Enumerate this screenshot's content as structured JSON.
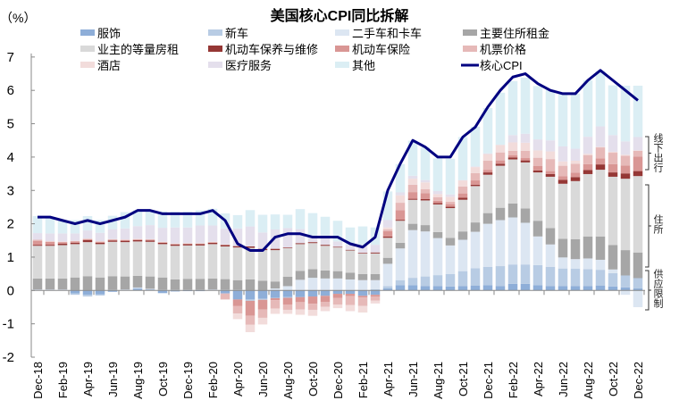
{
  "chart_data": {
    "type": "bar",
    "subtype": "stacked bar with line overlay",
    "title": "美国核心CPI同比拆解",
    "ylabel": "（%）",
    "xlabel": "",
    "ylim": [
      -2,
      7
    ],
    "yticks": [
      -2,
      -1,
      0,
      1,
      2,
      3,
      4,
      5,
      6,
      7
    ],
    "grid": false,
    "legend_position": "top",
    "categories": [
      "Dec-18",
      "Jan-19",
      "Feb-19",
      "Mar-19",
      "Apr-19",
      "May-19",
      "Jun-19",
      "Jul-19",
      "Aug-19",
      "Sep-19",
      "Oct-19",
      "Nov-19",
      "Dec-19",
      "Jan-20",
      "Feb-20",
      "Mar-20",
      "Apr-20",
      "May-20",
      "Jun-20",
      "Jul-20",
      "Aug-20",
      "Sep-20",
      "Oct-20",
      "Nov-20",
      "Dec-20",
      "Jan-21",
      "Feb-21",
      "Mar-21",
      "Apr-21",
      "May-21",
      "Jun-21",
      "Jul-21",
      "Aug-21",
      "Sep-21",
      "Oct-21",
      "Nov-21",
      "Dec-21",
      "Jan-22",
      "Feb-22",
      "Mar-22",
      "Apr-22",
      "May-22",
      "Jun-22",
      "Jul-22",
      "Aug-22",
      "Sep-22",
      "Oct-22",
      "Nov-22",
      "Dec-22"
    ],
    "xtick_labels": [
      "Dec-18",
      "Feb-19",
      "Apr-19",
      "Jun-19",
      "Aug-19",
      "Oct-19",
      "Dec-19",
      "Feb-20",
      "Apr-20",
      "Jun-20",
      "Aug-20",
      "Oct-20",
      "Dec-20",
      "Feb-21",
      "Apr-21",
      "Jun-21",
      "Aug-21",
      "Oct-21",
      "Dec-21",
      "Feb-22",
      "Apr-22",
      "Jun-22",
      "Aug-22",
      "Oct-22",
      "Dec-22"
    ],
    "series": [
      {
        "name": "服饰",
        "color": "#8eaed8",
        "values": [
          0.01,
          0.01,
          0.01,
          -0.09,
          -0.13,
          -0.12,
          -0.04,
          0.01,
          0.05,
          0.02,
          -0.08,
          -0.03,
          -0.02,
          -0.02,
          0.01,
          -0.09,
          -0.27,
          -0.27,
          -0.25,
          -0.22,
          -0.2,
          -0.2,
          -0.18,
          -0.16,
          -0.1,
          -0.1,
          -0.16,
          -0.13,
          0.06,
          0.16,
          0.16,
          0.13,
          0.13,
          0.12,
          0.13,
          0.15,
          0.16,
          0.13,
          0.2,
          0.2,
          0.16,
          0.13,
          0.13,
          0.13,
          0.13,
          0.15,
          0.12,
          0.09,
          0.06
        ]
      },
      {
        "name": "新车",
        "color": "#b8cce4",
        "values": [
          0.01,
          0.01,
          0.01,
          -0.04,
          -0.05,
          -0.03,
          0.01,
          0.01,
          0.03,
          0.02,
          0.01,
          0.01,
          0.01,
          0.01,
          0.01,
          0.01,
          0.01,
          -0.04,
          -0.03,
          -0.01,
          -0.02,
          0.01,
          0.01,
          0.01,
          0.01,
          0.01,
          0.01,
          0.04,
          0.07,
          0.15,
          0.22,
          0.29,
          0.33,
          0.37,
          0.45,
          0.52,
          0.55,
          0.6,
          0.58,
          0.58,
          0.6,
          0.58,
          0.53,
          0.52,
          0.51,
          0.47,
          0.4,
          0.36,
          0.31
        ]
      },
      {
        "name": "二手车和卡车",
        "color": "#dce6f2",
        "values": [
          0.01,
          0.01,
          0.01,
          0.01,
          0.01,
          0.01,
          0.01,
          0.01,
          0.01,
          0.01,
          0.01,
          0.01,
          0.01,
          0.01,
          0.01,
          0.01,
          0.01,
          0.01,
          0.01,
          0.06,
          0.13,
          0.31,
          0.37,
          0.35,
          0.35,
          0.32,
          0.3,
          0.27,
          0.67,
          0.95,
          1.43,
          1.35,
          1.11,
          0.86,
          0.94,
          1.09,
          1.29,
          1.38,
          1.41,
          1.25,
          0.86,
          0.67,
          0.33,
          0.29,
          0.32,
          0.3,
          0.11,
          -0.13,
          -0.5
        ]
      },
      {
        "name": "主要住所租金",
        "color": "#a6a6a6",
        "values": [
          0.33,
          0.33,
          0.33,
          0.38,
          0.42,
          0.38,
          0.41,
          0.39,
          0.35,
          0.37,
          0.37,
          0.31,
          0.33,
          0.33,
          0.33,
          0.32,
          0.29,
          0.32,
          0.28,
          0.21,
          0.28,
          0.27,
          0.26,
          0.24,
          0.22,
          0.2,
          0.18,
          0.18,
          0.18,
          0.17,
          0.19,
          0.19,
          0.18,
          0.23,
          0.25,
          0.28,
          0.32,
          0.37,
          0.42,
          0.43,
          0.47,
          0.49,
          0.56,
          0.6,
          0.66,
          0.7,
          0.73,
          0.76,
          0.77
        ]
      },
      {
        "name": "业主的等量房租",
        "color": "#d9d9d9",
        "values": [
          0.98,
          0.98,
          1.0,
          1.0,
          1.02,
          1.0,
          1.03,
          1.03,
          1.03,
          1.04,
          1.0,
          1.01,
          1.0,
          1.0,
          1.03,
          0.98,
          0.98,
          0.95,
          0.92,
          0.94,
          0.86,
          0.8,
          0.78,
          0.74,
          0.71,
          0.67,
          0.62,
          0.62,
          0.6,
          0.66,
          0.72,
          0.74,
          0.83,
          0.89,
          0.95,
          1.09,
          1.15,
          1.26,
          1.32,
          1.38,
          1.45,
          1.54,
          1.65,
          1.74,
          1.87,
          2.0,
          2.05,
          2.14,
          2.29
        ]
      },
      {
        "name": "机动车保养与维修",
        "color": "#953735",
        "values": [
          0.03,
          0.03,
          0.04,
          0.04,
          0.06,
          0.04,
          0.04,
          0.04,
          0.04,
          0.04,
          0.04,
          0.04,
          0.04,
          0.04,
          0.04,
          0.04,
          0.04,
          0.04,
          0.04,
          0.04,
          0.02,
          0.03,
          0.03,
          0.03,
          0.02,
          0.02,
          0.02,
          0.03,
          0.04,
          0.03,
          0.03,
          0.04,
          0.04,
          0.04,
          0.06,
          0.04,
          0.07,
          0.06,
          0.06,
          0.06,
          0.06,
          0.08,
          0.12,
          0.12,
          0.12,
          0.16,
          0.13,
          0.16,
          0.15
        ]
      },
      {
        "name": "机动车保险",
        "color": "#d99694",
        "values": [
          0.12,
          0.09,
          0.05,
          0.04,
          0.03,
          0.03,
          0.02,
          0.02,
          0.02,
          0.02,
          0.01,
          0.01,
          0.01,
          0.01,
          0.01,
          0.01,
          -0.2,
          -0.45,
          -0.29,
          -0.06,
          -0.2,
          -0.15,
          -0.22,
          -0.18,
          -0.12,
          -0.07,
          -0.05,
          -0.05,
          0.16,
          0.29,
          0.2,
          0.18,
          0.07,
          0.08,
          0.13,
          0.13,
          0.08,
          0.1,
          0.07,
          0.07,
          0.13,
          0.09,
          0.11,
          0.13,
          0.18,
          0.18,
          0.25,
          0.24,
          0.43
        ]
      },
      {
        "name": "机票价格",
        "color": "#e6b9b8",
        "values": [
          0.03,
          0.01,
          0.01,
          0.01,
          0.01,
          0.01,
          0.01,
          0.01,
          0.01,
          0.01,
          0.01,
          0.01,
          0.01,
          0.01,
          0.01,
          -0.18,
          -0.22,
          -0.27,
          -0.25,
          -0.25,
          -0.16,
          -0.22,
          -0.18,
          -0.15,
          -0.2,
          -0.27,
          -0.25,
          -0.12,
          0.05,
          0.22,
          0.22,
          0.12,
          0.11,
          0.07,
          0.21,
          0.22,
          0.27,
          0.24,
          0.13,
          0.22,
          0.25,
          0.36,
          0.31,
          0.27,
          0.27,
          0.33,
          0.34,
          0.29,
          0.18
        ]
      },
      {
        "name": "酒店",
        "color": "#f2dcdb",
        "values": [
          0.0,
          0.01,
          0.01,
          0.01,
          0.01,
          0.01,
          0.01,
          0.01,
          0.01,
          0.01,
          0.01,
          0.01,
          0.01,
          0.01,
          0.01,
          0.01,
          -0.17,
          -0.22,
          -0.2,
          -0.16,
          -0.12,
          -0.16,
          -0.18,
          -0.13,
          -0.11,
          -0.18,
          -0.2,
          -0.09,
          0.06,
          0.22,
          0.18,
          0.2,
          0.09,
          0.15,
          0.18,
          0.18,
          0.2,
          0.22,
          0.25,
          0.24,
          0.22,
          0.23,
          0.13,
          0.09,
          0.04,
          0.02,
          0.03,
          0.03,
          0.01
        ]
      },
      {
        "name": "医疗服务",
        "color": "#e4dfec",
        "values": [
          0.2,
          0.23,
          0.24,
          0.22,
          0.24,
          0.25,
          0.3,
          0.33,
          0.38,
          0.42,
          0.42,
          0.48,
          0.47,
          0.53,
          0.49,
          0.48,
          0.53,
          0.6,
          0.49,
          0.58,
          0.58,
          0.42,
          0.2,
          0.28,
          0.16,
          0.14,
          0.24,
          0.23,
          0.22,
          0.09,
          0.09,
          0.07,
          0.09,
          0.07,
          0.01,
          0.02,
          0.02,
          0.01,
          0.22,
          0.27,
          0.33,
          0.33,
          0.45,
          0.36,
          0.51,
          0.61,
          0.5,
          0.4,
          0.4
        ]
      },
      {
        "name": "其他",
        "color": "#dbeef4",
        "values": [
          0.51,
          0.45,
          0.4,
          0.4,
          0.43,
          0.38,
          0.4,
          0.49,
          0.47,
          0.45,
          0.49,
          0.47,
          0.47,
          0.45,
          0.5,
          0.45,
          0.4,
          0.49,
          0.53,
          0.45,
          0.4,
          0.6,
          0.67,
          0.56,
          0.62,
          0.53,
          0.55,
          0.52,
          0.86,
          0.85,
          1.05,
          0.98,
          0.98,
          1.07,
          1.29,
          1.19,
          1.36,
          1.56,
          1.62,
          1.68,
          1.6,
          1.52,
          1.6,
          1.65,
          1.69,
          1.65,
          1.49,
          1.67,
          1.54
        ]
      }
    ],
    "line": {
      "name": "核心CPI",
      "color": "#000080",
      "values": [
        2.2,
        2.2,
        2.1,
        2.0,
        2.1,
        2.0,
        2.1,
        2.2,
        2.4,
        2.4,
        2.3,
        2.3,
        2.3,
        2.3,
        2.4,
        2.1,
        1.4,
        1.2,
        1.2,
        1.6,
        1.7,
        1.7,
        1.6,
        1.6,
        1.6,
        1.4,
        1.3,
        1.6,
        3.0,
        3.8,
        4.5,
        4.3,
        4.0,
        4.0,
        4.6,
        4.9,
        5.5,
        6.0,
        6.4,
        6.5,
        6.2,
        6.0,
        5.9,
        5.9,
        6.3,
        6.6,
        6.3,
        6.0,
        5.7
      ]
    },
    "annotations": [
      "线下出行",
      "住所",
      "供应限制"
    ]
  }
}
